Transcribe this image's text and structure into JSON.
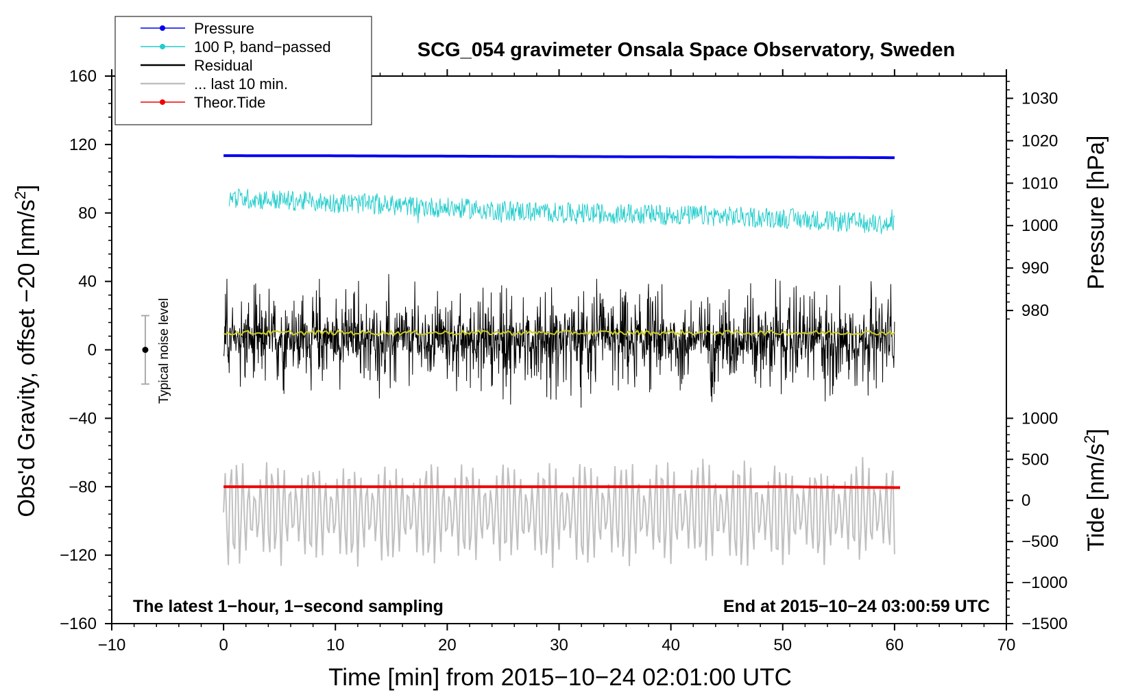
{
  "chart_data": {
    "type": "line",
    "title": "SCG_054 gravimeter Onsala Space Observatory, Sweden",
    "xlabel": "Time [min] from 2015−10−24 02:01:00 UTC",
    "ylabel_main": "Obs'd Gravity, offset −20 [nm/s",
    "ylabel_main_sup": "2",
    "ylabel_main_close": "]",
    "ylabel_pressure": "Pressure [hPa]",
    "ylabel_tide": "Tide [nm/s",
    "ylabel_tide_sup": "2",
    "ylabel_tide_close": "]",
    "xlim": [
      -10,
      70
    ],
    "ylim": [
      -160,
      160
    ],
    "x_ticks": [
      -10,
      0,
      10,
      20,
      30,
      40,
      50,
      60,
      70
    ],
    "x_tick_labels": [
      "−10",
      "0",
      "10",
      "20",
      "30",
      "40",
      "50",
      "60",
      "70"
    ],
    "y_ticks": [
      -160,
      -120,
      -80,
      -40,
      0,
      40,
      80,
      120,
      160
    ],
    "y_tick_labels": [
      "−160",
      "−120",
      "−80",
      "−40",
      "0",
      "40",
      "80",
      "120",
      "160"
    ],
    "pressure_ticks": [
      980,
      990,
      1000,
      1010,
      1020,
      1030
    ],
    "pressure_tick_labels": [
      "980",
      "990",
      "1000",
      "1010",
      "1020",
      "1030"
    ],
    "pressure_axis_map": {
      "p1": 980,
      "g1": 23,
      "p2": 1030,
      "g2": 147
    },
    "tide_ticks": [
      -1500,
      -1000,
      -500,
      0,
      500,
      1000
    ],
    "tide_tick_labels": [
      "−1500",
      "−1000",
      "−500",
      "0",
      "500",
      "1000"
    ],
    "tide_axis_map": {
      "t1": -1500,
      "g1": -160,
      "t2": 1000,
      "g2": -40
    },
    "legend": [
      {
        "label": "Pressure",
        "color": "#0000ee",
        "marker": true
      },
      {
        "label": "100 P, band−passed",
        "color": "#22cccc",
        "marker": true
      },
      {
        "label": "Residual",
        "color": "#000000",
        "marker": false
      },
      {
        "label": "... last 10 min.",
        "color": "#c0c0c0",
        "marker": false
      },
      {
        "label": "Theor.Tide",
        "color": "#ee0000",
        "marker": true
      }
    ],
    "legend_placement": "top-left",
    "annotation_left": "The latest 1−hour, 1−second sampling",
    "annotation_right": "End at 2015−10−24 03:00:59 UTC",
    "noise_label": "Typical noise level",
    "noise_bar": {
      "x": -7,
      "center": 0,
      "low": -20,
      "high": 20
    },
    "series": [
      {
        "name": "Pressure",
        "color": "#0000ee",
        "x": [
          0,
          10,
          20,
          30,
          40,
          50,
          60
        ],
        "values": [
          113.5,
          113.4,
          113.2,
          113.0,
          112.8,
          112.6,
          112.3
        ]
      },
      {
        "name": "100 P, band-passed",
        "color": "#22cccc",
        "x": [
          0,
          10,
          20,
          30,
          40,
          50,
          60
        ],
        "values": [
          89,
          86,
          83,
          80,
          79,
          77,
          73
        ],
        "amplitude": 6
      },
      {
        "name": "Residual",
        "color": "#000000",
        "x": [
          0,
          10,
          20,
          30,
          40,
          50,
          60
        ],
        "values": [
          0,
          0,
          0,
          0,
          0,
          0,
          0
        ],
        "amplitude": 22,
        "range": [
          -40,
          60
        ]
      },
      {
        "name": "Residual smoothed",
        "color": "#cccc22",
        "x": [
          0,
          10,
          20,
          30,
          40,
          50,
          60
        ],
        "values": [
          10,
          10,
          10,
          10,
          10,
          10,
          10
        ]
      },
      {
        "name": "... last 10 min.",
        "color": "#c0c0c0",
        "x": [
          0,
          10,
          20,
          30,
          40,
          50,
          60
        ],
        "values": [
          -95,
          -95,
          -95,
          -95,
          -95,
          -95,
          -95
        ],
        "range": [
          -148,
          -50
        ]
      },
      {
        "name": "Theor.Tide",
        "color": "#ee0000",
        "x": [
          0,
          10,
          20,
          30,
          40,
          50,
          60
        ],
        "values": [
          -80,
          -80,
          -80,
          -80,
          -80,
          -80,
          -80.5
        ]
      }
    ]
  }
}
